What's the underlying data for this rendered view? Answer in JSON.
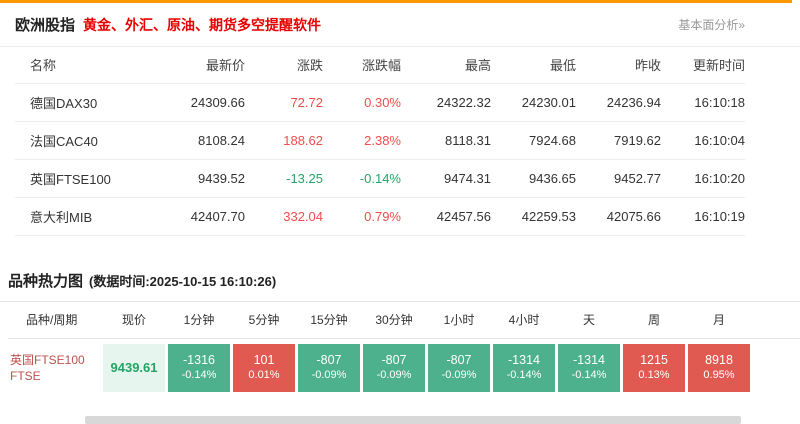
{
  "header": {
    "title": "欧洲股指",
    "subtitle": "黄金、外汇、原油、期货多空提醒软件",
    "link": "基本面分析»"
  },
  "quotes": {
    "headers": {
      "name": "名称",
      "price": "最新价",
      "change": "涨跌",
      "pct": "涨跌幅",
      "high": "最高",
      "low": "最低",
      "prev": "昨收",
      "time": "更新时间"
    },
    "rows": [
      {
        "name": "德国DAX30",
        "price": "24309.66",
        "change": "72.72",
        "pct": "0.30%",
        "high": "24322.32",
        "low": "24230.01",
        "prev": "24236.94",
        "time": "16:10:18",
        "direction": "up"
      },
      {
        "name": "法国CAC40",
        "price": "8108.24",
        "change": "188.62",
        "pct": "2.38%",
        "high": "8118.31",
        "low": "7924.68",
        "prev": "7919.62",
        "time": "16:10:04",
        "direction": "up"
      },
      {
        "name": "英国FTSE100",
        "price": "9439.52",
        "change": "-13.25",
        "pct": "-0.14%",
        "high": "9474.31",
        "low": "9436.65",
        "prev": "9452.77",
        "time": "16:10:20",
        "direction": "down"
      },
      {
        "name": "意大利MIB",
        "price": "42407.70",
        "change": "332.04",
        "pct": "0.79%",
        "high": "42457.56",
        "low": "42259.53",
        "prev": "42075.66",
        "time": "16:10:19",
        "direction": "up"
      }
    ]
  },
  "heatmap": {
    "title": "品种热力图",
    "subtitle": "(数据时间:2025-10-15 16:10:26)",
    "headers": [
      "品种/周期",
      "现价",
      "1分钟",
      "5分钟",
      "15分钟",
      "30分钟",
      "1小时",
      "4小时",
      "天",
      "周",
      "月"
    ],
    "row": {
      "name_line1": "英国FTSE100",
      "name_line2": "FTSE",
      "price": "9439.61",
      "cells": [
        {
          "value": "-1316",
          "pct": "-0.14%",
          "direction": "down"
        },
        {
          "value": "101",
          "pct": "0.01%",
          "direction": "up"
        },
        {
          "value": "-807",
          "pct": "-0.09%",
          "direction": "down"
        },
        {
          "value": "-807",
          "pct": "-0.09%",
          "direction": "down"
        },
        {
          "value": "-807",
          "pct": "-0.09%",
          "direction": "down"
        },
        {
          "value": "-1314",
          "pct": "-0.14%",
          "direction": "down"
        },
        {
          "value": "-1314",
          "pct": "-0.14%",
          "direction": "down"
        },
        {
          "value": "1215",
          "pct": "0.13%",
          "direction": "up"
        },
        {
          "value": "8918",
          "pct": "0.95%",
          "direction": "up"
        }
      ]
    }
  },
  "colors": {
    "up_text": "#f04c4c",
    "down_text": "#21a567",
    "up_cell_bg": "#e15a52",
    "down_cell_bg": "#4cb18c",
    "accent_bar": "#ff9800"
  }
}
